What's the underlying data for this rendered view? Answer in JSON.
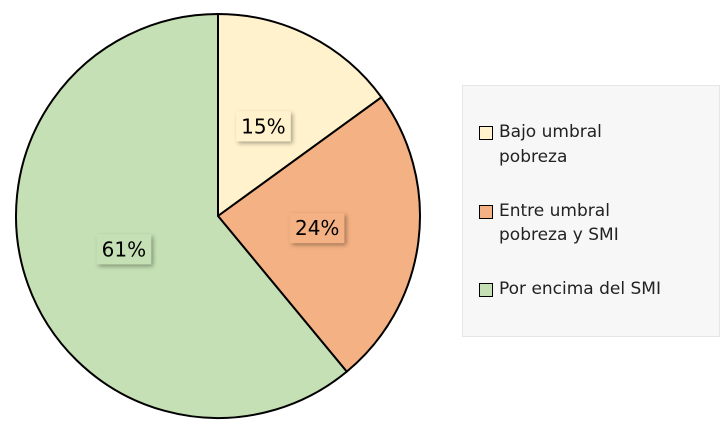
{
  "chart_data": {
    "type": "pie",
    "categories": [
      "Bajo umbral pobreza",
      "Entre umbral pobreza y SMI",
      "Por encima del SMI"
    ],
    "values": [
      15,
      24,
      61
    ],
    "value_labels": [
      "15%",
      "24%",
      "61%"
    ],
    "colors": [
      "#fff2cc",
      "#f4b183",
      "#c5e0b4"
    ],
    "legend": "right"
  }
}
